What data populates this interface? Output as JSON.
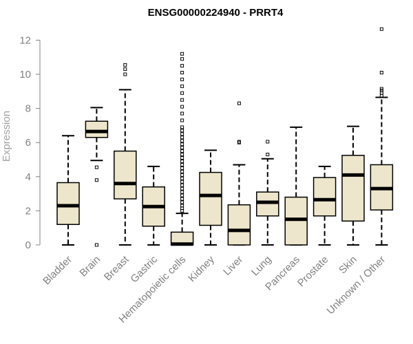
{
  "chart_data": {
    "type": "box",
    "title": "ENSG00000224940 - PRRT4",
    "xlabel": "",
    "ylabel": "Expression",
    "ylim": [
      0,
      12.5
    ],
    "yticks": [
      0,
      2,
      4,
      6,
      8,
      10,
      12
    ],
    "grid": false,
    "box_fill": "#ede6cc",
    "categories": [
      "Bladder",
      "Brain",
      "Breast",
      "Gastric",
      "Hematopoietic cells",
      "Kidney",
      "Liver",
      "Lung",
      "Pancreas",
      "Prostate",
      "Skin",
      "Unknown / Other"
    ],
    "boxes": [
      {
        "whisker_low": 0,
        "q1": 1.2,
        "median": 2.3,
        "q3": 3.65,
        "whisker_high": 6.4,
        "outliers": []
      },
      {
        "whisker_low": 4.95,
        "q1": 6.3,
        "median": 6.65,
        "q3": 7.25,
        "whisker_high": 8.05,
        "outliers": [
          4.55,
          3.8,
          0.0
        ]
      },
      {
        "whisker_low": 0,
        "q1": 2.7,
        "median": 3.6,
        "q3": 5.5,
        "whisker_high": 9.1,
        "outliers": [
          10.0,
          10.3,
          10.55
        ]
      },
      {
        "whisker_low": 0,
        "q1": 1.1,
        "median": 2.25,
        "q3": 3.4,
        "whisker_high": 4.6,
        "outliers": []
      },
      {
        "whisker_low": 0,
        "q1": 0,
        "median": 0.05,
        "q3": 0.75,
        "whisker_high": 1.85,
        "outliers": [
          2.0,
          2.15,
          2.3,
          2.5,
          2.7,
          2.9,
          3.1,
          3.3,
          3.5,
          3.7,
          3.9,
          4.1,
          4.3,
          4.5,
          4.7,
          4.9,
          5.1,
          5.3,
          5.5,
          5.7,
          5.9,
          6.1,
          6.3,
          6.5,
          6.7,
          6.9,
          7.3,
          7.7,
          8.1,
          8.5,
          8.9,
          9.3,
          9.7,
          10.1,
          10.5,
          10.9,
          11.2
        ]
      },
      {
        "whisker_low": 0,
        "q1": 1.15,
        "median": 2.9,
        "q3": 4.25,
        "whisker_high": 5.55,
        "outliers": []
      },
      {
        "whisker_low": 0,
        "q1": 0,
        "median": 0.85,
        "q3": 2.35,
        "whisker_high": 4.7,
        "outliers": [
          6.0,
          6.05,
          8.3
        ]
      },
      {
        "whisker_low": 0,
        "q1": 1.7,
        "median": 2.5,
        "q3": 3.1,
        "whisker_high": 5.05,
        "outliers": [
          5.3,
          6.05
        ]
      },
      {
        "whisker_low": 0,
        "q1": 0,
        "median": 1.5,
        "q3": 2.8,
        "whisker_high": 6.9,
        "outliers": []
      },
      {
        "whisker_low": 0,
        "q1": 1.7,
        "median": 2.65,
        "q3": 3.95,
        "whisker_high": 4.6,
        "outliers": []
      },
      {
        "whisker_low": 0,
        "q1": 1.4,
        "median": 4.1,
        "q3": 5.25,
        "whisker_high": 6.95,
        "outliers": []
      },
      {
        "whisker_low": 0,
        "q1": 2.05,
        "median": 3.3,
        "q3": 4.7,
        "whisker_high": 8.65,
        "outliers": [
          8.75,
          8.9,
          9.05,
          9.15,
          10.1,
          12.65
        ]
      }
    ]
  }
}
